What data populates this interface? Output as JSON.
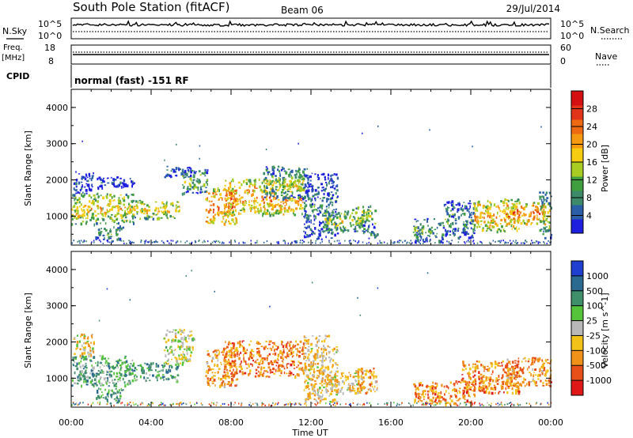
{
  "header": {
    "title": "South Pole Station (fitACF)",
    "beam": "Beam 06",
    "date": "29/Jul/2014"
  },
  "top_panels": {
    "nsky_label": "N.Sky",
    "nsearch_label": "N.Search",
    "scale_hi": "10^5",
    "scale_lo": "10^0",
    "freq_label": "Freq.",
    "freq_unit": "[MHz]",
    "freq_ticks": [
      "18",
      "8"
    ],
    "nave_label": "Nave",
    "nave_ticks": [
      "60",
      "0"
    ],
    "cpid_label": "CPID",
    "cpid_text": "normal (fast) -151 RF"
  },
  "chart_data": [
    {
      "type": "heatmap",
      "title": "",
      "xlabel": "Time UT",
      "ylabel": "Slant Range [km]",
      "colorbar_label": "Power [dB]",
      "xlim": [
        "00:00",
        "24:00"
      ],
      "ylim": [
        200,
        4500
      ],
      "x_ticks": [
        "00:00",
        "04:00",
        "08:00",
        "12:00",
        "16:00",
        "20:00",
        "00:00"
      ],
      "y_ticks": [
        1000,
        2000,
        3000,
        4000
      ],
      "colorbar_ticks": [
        "4",
        "8",
        "12",
        "16",
        "20",
        "24",
        "28"
      ],
      "colorscale": [
        "#1f1fe0",
        "#2a5fa8",
        "#3d8a6a",
        "#3f9f3f",
        "#a8cc22",
        "#f5cc10",
        "#f59a10",
        "#ee6a12",
        "#e23418",
        "#d41010"
      ],
      "scatter_regions": [
        {
          "t0": 0.0,
          "t1": 3.1,
          "r0": 800,
          "r1": 1650,
          "level": 0.55
        },
        {
          "t0": 0.1,
          "t1": 1.1,
          "r0": 1650,
          "r1": 2250,
          "level": 0.2
        },
        {
          "t0": 1.2,
          "t1": 3.2,
          "r0": 1800,
          "r1": 2100,
          "level": 0.15
        },
        {
          "t0": 2.9,
          "t1": 5.4,
          "r0": 950,
          "r1": 1450,
          "level": 0.55
        },
        {
          "t0": 4.6,
          "t1": 6.1,
          "r0": 2100,
          "r1": 2400,
          "level": 0.2
        },
        {
          "t0": 1.2,
          "t1": 2.6,
          "r0": 350,
          "r1": 750,
          "level": 0.35
        },
        {
          "t0": 5.5,
          "t1": 6.8,
          "r0": 1600,
          "r1": 2300,
          "level": 0.4
        },
        {
          "t0": 6.7,
          "t1": 8.3,
          "r0": 800,
          "r1": 1800,
          "level": 0.75
        },
        {
          "t0": 7.6,
          "t1": 11.6,
          "r0": 1050,
          "r1": 2050,
          "level": 0.7
        },
        {
          "t0": 9.6,
          "t1": 11.8,
          "r0": 1500,
          "r1": 2400,
          "level": 0.4
        },
        {
          "t0": 11.6,
          "t1": 13.3,
          "r0": 350,
          "r1": 2200,
          "level": 0.25
        },
        {
          "t0": 12.6,
          "t1": 14.6,
          "r0": 600,
          "r1": 1200,
          "level": 0.45
        },
        {
          "t0": 14.2,
          "t1": 15.2,
          "r0": 750,
          "r1": 1300,
          "level": 0.5
        },
        {
          "t0": 14.6,
          "t1": 15.3,
          "r0": 400,
          "r1": 800,
          "level": 0.25
        },
        {
          "t0": 17.1,
          "t1": 18.6,
          "r0": 300,
          "r1": 950,
          "level": 0.35
        },
        {
          "t0": 18.6,
          "t1": 20.2,
          "r0": 400,
          "r1": 1450,
          "level": 0.3
        },
        {
          "t0": 20.1,
          "t1": 22.4,
          "r0": 600,
          "r1": 1500,
          "level": 0.65
        },
        {
          "t0": 21.7,
          "t1": 23.7,
          "r0": 800,
          "r1": 1400,
          "level": 0.75
        },
        {
          "t0": 23.4,
          "t1": 24.0,
          "r0": 400,
          "r1": 1700,
          "level": 0.45
        }
      ]
    },
    {
      "type": "heatmap",
      "title": "",
      "xlabel": "Time UT",
      "ylabel": "Slant Range [km]",
      "colorbar_label": "Velocity [m s^-1]",
      "xlim": [
        "00:00",
        "24:00"
      ],
      "ylim": [
        200,
        4500
      ],
      "x_ticks": [
        "00:00",
        "04:00",
        "08:00",
        "12:00",
        "16:00",
        "20:00",
        "00:00"
      ],
      "y_ticks": [
        1000,
        2000,
        3000,
        4000
      ],
      "colorbar_ticks": [
        "1000",
        "500",
        "100",
        "25",
        "-25",
        "-100",
        "-500",
        "-1000"
      ],
      "colorscale": [
        "#1f3fd0",
        "#2a6a90",
        "#3f8f6a",
        "#55c43a",
        "#b8b8b8",
        "#f2c218",
        "#f0921a",
        "#e8501a",
        "#e01818"
      ],
      "scatter_regions": [
        {
          "t0": 0.0,
          "t1": 3.1,
          "r0": 800,
          "r1": 1650,
          "level": 0.35
        },
        {
          "t0": 0.1,
          "t1": 1.1,
          "r0": 1650,
          "r1": 2250,
          "level": 0.6
        },
        {
          "t0": 2.9,
          "t1": 5.4,
          "r0": 950,
          "r1": 1450,
          "level": 0.3
        },
        {
          "t0": 1.2,
          "t1": 2.6,
          "r0": 350,
          "r1": 750,
          "level": 0.3
        },
        {
          "t0": 4.6,
          "t1": 6.1,
          "r0": 1400,
          "r1": 2400,
          "level": 0.5
        },
        {
          "t0": 6.7,
          "t1": 8.3,
          "r0": 800,
          "r1": 1800,
          "level": 0.7
        },
        {
          "t0": 7.6,
          "t1": 11.6,
          "r0": 1050,
          "r1": 2050,
          "level": 0.75
        },
        {
          "t0": 11.6,
          "t1": 13.3,
          "r0": 350,
          "r1": 2200,
          "level": 0.6
        },
        {
          "t0": 12.6,
          "t1": 14.6,
          "r0": 600,
          "r1": 1200,
          "level": 0.6
        },
        {
          "t0": 14.2,
          "t1": 15.3,
          "r0": 600,
          "r1": 1300,
          "level": 0.7
        },
        {
          "t0": 17.1,
          "t1": 20.2,
          "r0": 300,
          "r1": 950,
          "level": 0.75
        },
        {
          "t0": 19.5,
          "t1": 22.4,
          "r0": 600,
          "r1": 1500,
          "level": 0.75
        },
        {
          "t0": 21.7,
          "t1": 24.0,
          "r0": 800,
          "r1": 1600,
          "level": 0.72
        }
      ]
    }
  ]
}
